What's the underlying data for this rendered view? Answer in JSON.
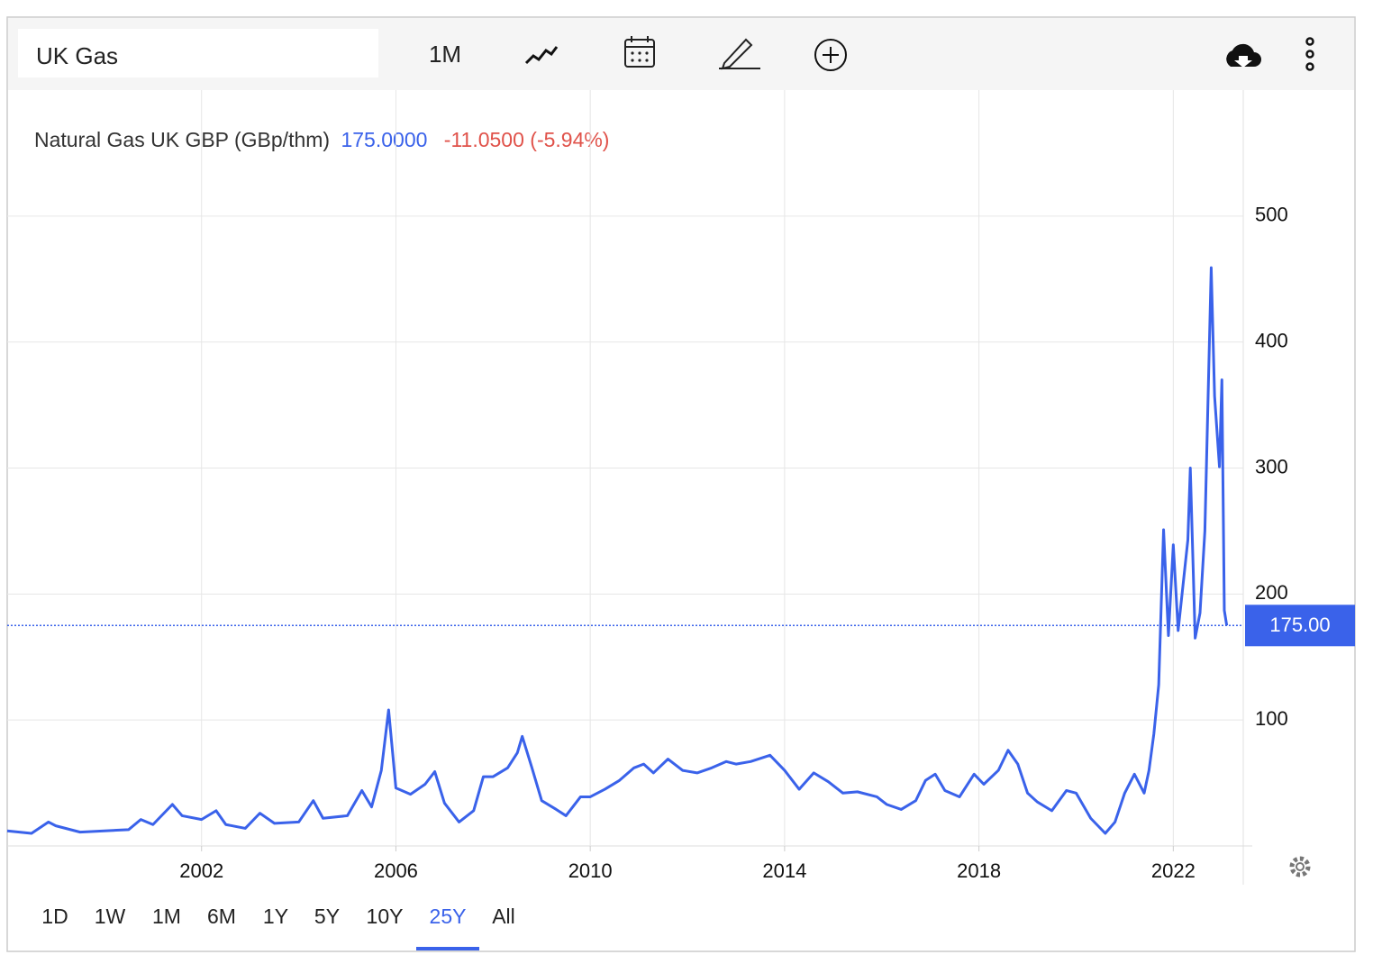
{
  "ui": {
    "search": "UK Gas",
    "interval": "1M",
    "ranges": [
      "1D",
      "1W",
      "1M",
      "6M",
      "1Y",
      "5Y",
      "10Y",
      "25Y",
      "All"
    ],
    "active_range": "25Y"
  },
  "chart_data": {
    "type": "line",
    "title": "Natural Gas UK GBP (GBp/thm)",
    "price": "175.0000",
    "change": "-11.0500 (-5.94%)",
    "color": "#3a62ea",
    "price_color": "#3a62ea",
    "change_color": "#e0524a",
    "x": [
      1998.0,
      1998.5,
      1998.85,
      1999.0,
      1999.5,
      2000.0,
      2000.5,
      2000.75,
      2001.0,
      2001.4,
      2001.6,
      2002.0,
      2002.3,
      2002.5,
      2002.9,
      2003.2,
      2003.5,
      2004.0,
      2004.3,
      2004.5,
      2005.0,
      2005.3,
      2005.5,
      2005.7,
      2005.85,
      2006.0,
      2006.3,
      2006.6,
      2006.8,
      2007.0,
      2007.3,
      2007.6,
      2007.8,
      2008.0,
      2008.3,
      2008.5,
      2008.6,
      2008.8,
      2009.0,
      2009.3,
      2009.5,
      2009.8,
      2010.0,
      2010.3,
      2010.6,
      2010.9,
      2011.1,
      2011.3,
      2011.6,
      2011.9,
      2012.2,
      2012.5,
      2012.8,
      2013.0,
      2013.3,
      2013.7,
      2014.0,
      2014.3,
      2014.6,
      2014.9,
      2015.2,
      2015.5,
      2015.9,
      2016.1,
      2016.4,
      2016.7,
      2016.9,
      2017.1,
      2017.3,
      2017.6,
      2017.9,
      2018.1,
      2018.4,
      2018.6,
      2018.8,
      2019.0,
      2019.2,
      2019.5,
      2019.8,
      2020.0,
      2020.3,
      2020.6,
      2020.8,
      2021.0,
      2021.2,
      2021.4,
      2021.5,
      2021.6,
      2021.7,
      2021.8,
      2021.9,
      2022.0,
      2022.1,
      2022.3,
      2022.35,
      2022.45,
      2022.55,
      2022.65,
      2022.78,
      2022.85,
      2022.95,
      2023.0,
      2023.05,
      2023.1
    ],
    "values": [
      12,
      10,
      19,
      16,
      11,
      12,
      13,
      21,
      17,
      33,
      24,
      21,
      28,
      17,
      14,
      26,
      18,
      19,
      36,
      22,
      24,
      44,
      31,
      60,
      108,
      46,
      41,
      49,
      59,
      34,
      19,
      28,
      55,
      55,
      62,
      74,
      87,
      62,
      36,
      29,
      24,
      39,
      39,
      45,
      52,
      62,
      65,
      58,
      69,
      60,
      58,
      62,
      67,
      65,
      67,
      72,
      60,
      45,
      58,
      51,
      42,
      43,
      39,
      33,
      29,
      36,
      52,
      57,
      44,
      39,
      57,
      49,
      60,
      76,
      65,
      42,
      35,
      28,
      44,
      42,
      22,
      10,
      19,
      42,
      57,
      42,
      60,
      89,
      128,
      251,
      167,
      239,
      171,
      243,
      300,
      165,
      185,
      250,
      459,
      357,
      301,
      370,
      187,
      175
    ],
    "xlim": [
      1998.0,
      2023.44
    ],
    "xticks": [
      2002,
      2006,
      2010,
      2014,
      2018,
      2022
    ],
    "ylim": [
      0,
      600
    ],
    "yticks": [
      100,
      200,
      300,
      400,
      500
    ],
    "grid": true,
    "last_price": {
      "value": 175,
      "label": "175.00"
    }
  }
}
